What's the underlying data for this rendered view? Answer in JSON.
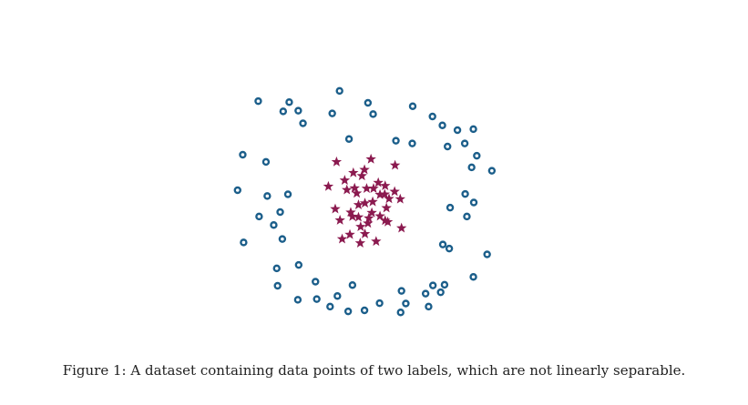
{
  "caption": "Figure 1: A dataset containing data points of two labels, which are not linearly separable.",
  "colors": {
    "circle": "#1b5e8a",
    "star": "#8b1a4f"
  },
  "chart_data": {
    "type": "scatter",
    "axes_visible": false,
    "grid": false,
    "xlim": [
      -3.6,
      3.6
    ],
    "ylim": [
      -3.6,
      3.6
    ],
    "series": [
      {
        "marker": "circle",
        "color": "#1b5e8a",
        "points": [
          [
            -2.68,
            2.85
          ],
          [
            -0.79,
            3.15
          ],
          [
            -2.1,
            2.55
          ],
          [
            -1.75,
            2.57
          ],
          [
            -1.96,
            2.82
          ],
          [
            -1.64,
            2.2
          ],
          [
            -0.96,
            2.49
          ],
          [
            -0.13,
            2.8
          ],
          [
            -0.01,
            2.47
          ],
          [
            0.91,
            2.7
          ],
          [
            1.37,
            2.4
          ],
          [
            1.6,
            2.14
          ],
          [
            1.95,
            2.0
          ],
          [
            2.32,
            2.03
          ],
          [
            -0.57,
            1.74
          ],
          [
            0.52,
            1.69
          ],
          [
            0.9,
            1.61
          ],
          [
            1.72,
            1.52
          ],
          [
            -3.04,
            1.28
          ],
          [
            -2.5,
            1.07
          ],
          [
            2.12,
            1.61
          ],
          [
            2.4,
            1.25
          ],
          [
            2.28,
            0.91
          ],
          [
            2.75,
            0.81
          ],
          [
            -3.16,
            0.24
          ],
          [
            -2.47,
            0.07
          ],
          [
            -1.99,
            0.12
          ],
          [
            -2.17,
            -0.4
          ],
          [
            1.78,
            -0.27
          ],
          [
            2.13,
            0.13
          ],
          [
            2.17,
            -0.53
          ],
          [
            2.33,
            -0.12
          ],
          [
            -2.66,
            -0.53
          ],
          [
            -2.32,
            -0.78
          ],
          [
            -2.12,
            -1.19
          ],
          [
            1.61,
            -1.35
          ],
          [
            1.76,
            -1.47
          ],
          [
            2.64,
            -1.64
          ],
          [
            -3.02,
            -1.29
          ],
          [
            -2.25,
            -2.05
          ],
          [
            -1.74,
            -1.95
          ],
          [
            -2.23,
            -2.56
          ],
          [
            -1.35,
            -2.44
          ],
          [
            -0.49,
            -2.54
          ],
          [
            -0.84,
            -2.86
          ],
          [
            -1.32,
            -2.95
          ],
          [
            -1.76,
            -2.97
          ],
          [
            -1.01,
            -3.17
          ],
          [
            -0.59,
            -3.31
          ],
          [
            -0.21,
            -3.28
          ],
          [
            0.14,
            -3.07
          ],
          [
            0.63,
            -3.34
          ],
          [
            0.75,
            -3.08
          ],
          [
            1.21,
            -2.79
          ],
          [
            1.28,
            -3.17
          ],
          [
            1.56,
            -2.75
          ],
          [
            1.65,
            -2.53
          ],
          [
            2.32,
            -2.3
          ],
          [
            0.65,
            -2.71
          ],
          [
            1.38,
            -2.55
          ]
        ]
      },
      {
        "marker": "star",
        "color": "#8b1a4f",
        "points": [
          [
            -0.86,
            1.07
          ],
          [
            -0.06,
            1.15
          ],
          [
            0.5,
            0.97
          ],
          [
            -1.05,
            0.35
          ],
          [
            -0.62,
            0.25
          ],
          [
            -0.39,
            0.15
          ],
          [
            -0.89,
            -0.31
          ],
          [
            -0.49,
            -0.53
          ],
          [
            -0.11,
            -0.58
          ],
          [
            -0.2,
            -0.14
          ],
          [
            0.33,
            -0.69
          ],
          [
            0.15,
            0.11
          ],
          [
            0.3,
            -0.28
          ],
          [
            -0.78,
            -0.64
          ],
          [
            -0.3,
            -0.83
          ],
          [
            -0.73,
            -1.19
          ],
          [
            -0.31,
            -1.31
          ],
          [
            0.06,
            -1.26
          ],
          [
            -0.35,
            -0.19
          ],
          [
            -0.04,
            -0.42
          ],
          [
            -0.44,
            0.3
          ],
          [
            -0.67,
            0.53
          ],
          [
            -0.21,
            0.84
          ],
          [
            0.36,
            -0.01
          ],
          [
            0.65,
            -0.87
          ],
          [
            0.62,
            -0.02
          ],
          [
            0.11,
            0.46
          ],
          [
            -0.16,
            0.29
          ],
          [
            0.27,
            0.37
          ],
          [
            -0.27,
            0.66
          ],
          [
            -0.47,
            0.75
          ],
          [
            0.49,
            0.2
          ],
          [
            0.27,
            -0.65
          ],
          [
            -0.13,
            -0.73
          ],
          [
            0.15,
            -0.52
          ],
          [
            -0.2,
            -1.04
          ],
          [
            -0.55,
            -1.06
          ],
          [
            -0.02,
            -0.1
          ],
          [
            0.26,
            0.12
          ],
          [
            -0.35,
            -0.55
          ],
          [
            -0.53,
            -0.41
          ],
          [
            0.0,
            0.29
          ]
        ]
      }
    ]
  }
}
